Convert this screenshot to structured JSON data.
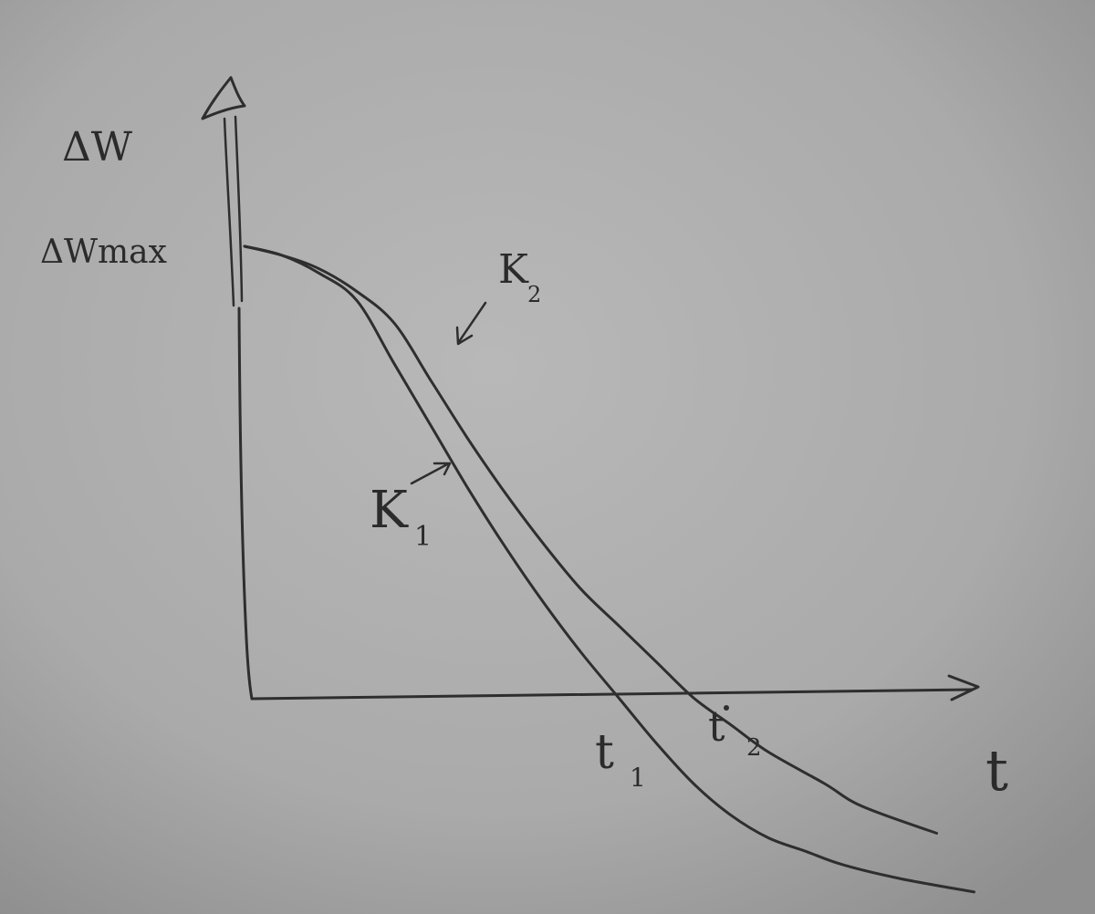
{
  "chart_data": {
    "type": "line",
    "medium": "hand-drawn pencil sketch on paper",
    "ylabel": "ΔW",
    "xlabel": "t",
    "ytick_label": "ΔWmax",
    "grid": false,
    "series": [
      {
        "name": "K1",
        "name_main": "K",
        "name_sub": "1",
        "x": [
          0,
          0.1,
          0.2,
          0.3,
          0.4,
          0.5,
          0.6,
          0.7,
          0.8,
          0.9,
          1.0,
          1.1,
          1.2,
          1.3,
          1.4,
          1.5,
          1.6,
          1.75,
          1.95
        ],
        "y": [
          1.0,
          0.98,
          0.94,
          0.88,
          0.74,
          0.6,
          0.46,
          0.33,
          0.21,
          0.1,
          0.0,
          -0.1,
          -0.19,
          -0.26,
          -0.31,
          -0.34,
          -0.37,
          -0.4,
          -0.43
        ],
        "crossing_label": "t1",
        "crossing_main": "t",
        "crossing_sub": "1"
      },
      {
        "name": "K2",
        "name_main": "K",
        "name_sub": "2",
        "x": [
          0,
          0.1,
          0.2,
          0.3,
          0.4,
          0.5,
          0.6,
          0.7,
          0.8,
          0.9,
          1.0,
          1.1,
          1.2,
          1.3,
          1.4,
          1.55,
          1.65,
          1.85
        ],
        "y": [
          1.0,
          0.98,
          0.95,
          0.9,
          0.83,
          0.7,
          0.57,
          0.45,
          0.34,
          0.24,
          0.16,
          0.08,
          0.0,
          -0.06,
          -0.12,
          -0.19,
          -0.24,
          -0.3
        ],
        "crossing_label": "t2",
        "crossing_main": "t",
        "crossing_sub": "2"
      }
    ]
  }
}
